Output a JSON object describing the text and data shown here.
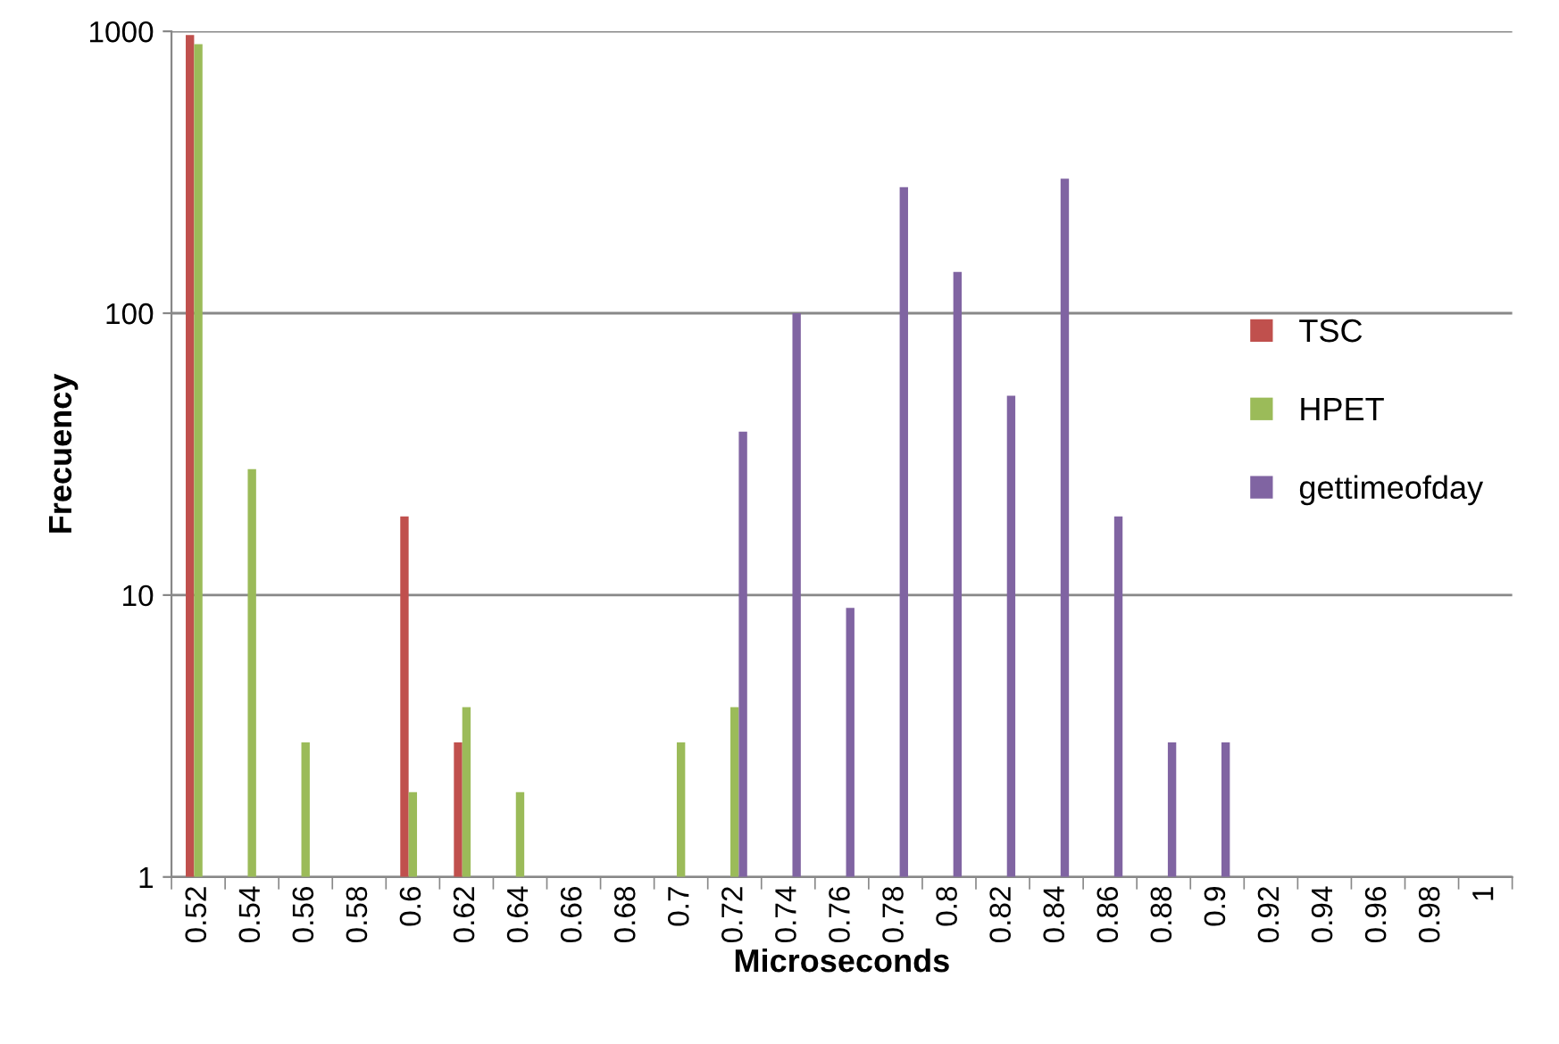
{
  "chart_data": {
    "type": "bar",
    "xlabel": "Microseconds",
    "ylabel": "Frecuency",
    "categories": [
      "0.52",
      "0.54",
      "0.56",
      "0.58",
      "0.6",
      "0.62",
      "0.64",
      "0.66",
      "0.68",
      "0.7",
      "0.72",
      "0.74",
      "0.76",
      "0.78",
      "0.8",
      "0.82",
      "0.84",
      "0.86",
      "0.88",
      "0.9",
      "0.92",
      "0.94",
      "0.96",
      "0.98",
      "1"
    ],
    "series": [
      {
        "name": "TSC",
        "color": "#c0504d",
        "values": [
          970,
          null,
          null,
          null,
          19,
          3,
          null,
          null,
          null,
          null,
          null,
          null,
          null,
          null,
          null,
          null,
          null,
          null,
          null,
          null,
          null,
          null,
          null,
          null,
          null
        ]
      },
      {
        "name": "HPET",
        "color": "#9bbb59",
        "values": [
          900,
          28,
          3,
          null,
          2,
          4,
          2,
          null,
          null,
          3,
          4,
          null,
          null,
          null,
          null,
          null,
          null,
          null,
          null,
          null,
          null,
          null,
          null,
          null,
          null
        ]
      },
      {
        "name": "gettimeofday",
        "color": "#8064a2",
        "values": [
          null,
          null,
          null,
          null,
          null,
          null,
          null,
          null,
          null,
          null,
          38,
          100,
          9,
          280,
          140,
          51,
          300,
          19,
          3,
          3,
          null,
          null,
          null,
          null,
          null
        ]
      }
    ],
    "log": "y",
    "ylim": [
      1,
      1000
    ],
    "yticks": [
      1,
      10,
      100,
      1000
    ],
    "grid": "y",
    "legend": "right"
  }
}
